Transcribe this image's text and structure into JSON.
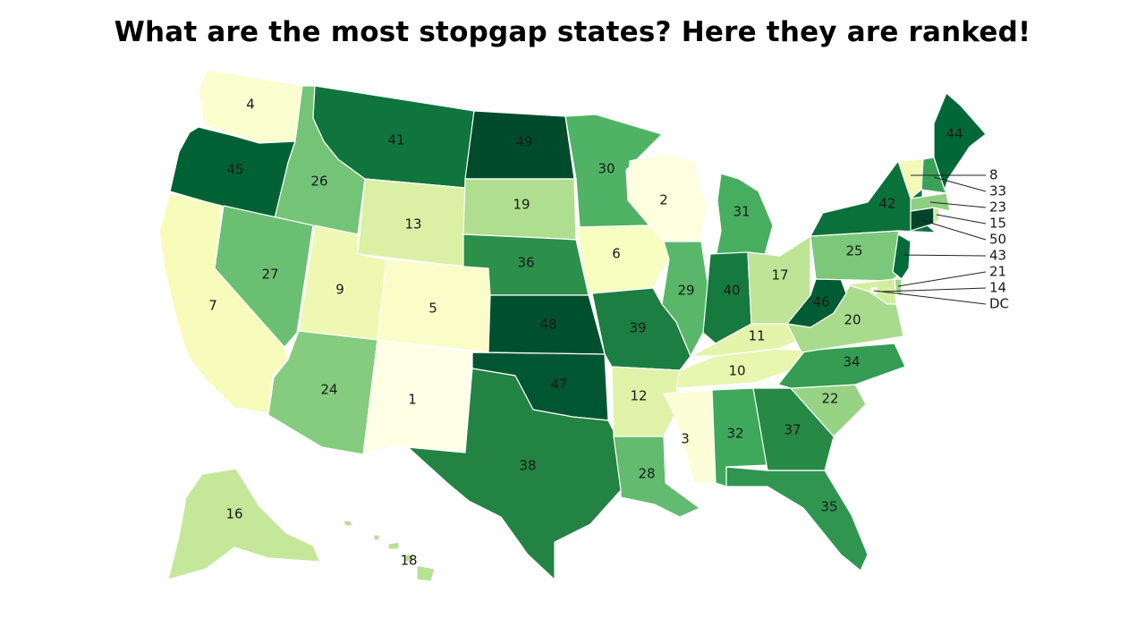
{
  "title": "What are the most stopgap states? Here they are ranked!",
  "legend": {
    "scale": "green sequential",
    "low_color": "#ffffe5",
    "high_color": "#004a29",
    "min_rank": 1,
    "max_rank": 50
  },
  "states": [
    {
      "code": "WA",
      "rank": 4
    },
    {
      "code": "OR",
      "rank": 45
    },
    {
      "code": "CA",
      "rank": 7
    },
    {
      "code": "ID",
      "rank": 26
    },
    {
      "code": "NV",
      "rank": 27
    },
    {
      "code": "MT",
      "rank": 41
    },
    {
      "code": "WY",
      "rank": 13
    },
    {
      "code": "UT",
      "rank": 9
    },
    {
      "code": "CO",
      "rank": 5
    },
    {
      "code": "AZ",
      "rank": 24
    },
    {
      "code": "NM",
      "rank": 1
    },
    {
      "code": "ND",
      "rank": 49
    },
    {
      "code": "SD",
      "rank": 19
    },
    {
      "code": "NE",
      "rank": 36
    },
    {
      "code": "KS",
      "rank": 48
    },
    {
      "code": "OK",
      "rank": 47
    },
    {
      "code": "TX",
      "rank": 38
    },
    {
      "code": "MN",
      "rank": 30
    },
    {
      "code": "IA",
      "rank": 6
    },
    {
      "code": "MO",
      "rank": 39
    },
    {
      "code": "AR",
      "rank": 12
    },
    {
      "code": "LA",
      "rank": 28
    },
    {
      "code": "WI",
      "rank": 2
    },
    {
      "code": "IL",
      "rank": 29
    },
    {
      "code": "MI",
      "rank": 31
    },
    {
      "code": "IN",
      "rank": 40
    },
    {
      "code": "OH",
      "rank": 17
    },
    {
      "code": "KY",
      "rank": 11
    },
    {
      "code": "TN",
      "rank": 10
    },
    {
      "code": "MS",
      "rank": 3
    },
    {
      "code": "AL",
      "rank": 32
    },
    {
      "code": "GA",
      "rank": 37
    },
    {
      "code": "FL",
      "rank": 35
    },
    {
      "code": "SC",
      "rank": 22
    },
    {
      "code": "NC",
      "rank": 34
    },
    {
      "code": "VA",
      "rank": 20
    },
    {
      "code": "WV",
      "rank": 46
    },
    {
      "code": "PA",
      "rank": 25
    },
    {
      "code": "NY",
      "rank": 42
    },
    {
      "code": "NJ",
      "rank": 43
    },
    {
      "code": "DE",
      "rank": 21
    },
    {
      "code": "MD",
      "rank": 14
    },
    {
      "code": "DC",
      "rank": null,
      "label": "DC"
    },
    {
      "code": "CT",
      "rank": 50
    },
    {
      "code": "RI",
      "rank": 15
    },
    {
      "code": "MA",
      "rank": 23
    },
    {
      "code": "VT",
      "rank": 8
    },
    {
      "code": "NH",
      "rank": 33
    },
    {
      "code": "ME",
      "rank": 44
    },
    {
      "code": "AK",
      "rank": 16
    },
    {
      "code": "HI",
      "rank": 18
    }
  ],
  "callouts": [
    "8",
    "33",
    "23",
    "15",
    "50",
    "43",
    "21",
    "14",
    "DC"
  ]
}
